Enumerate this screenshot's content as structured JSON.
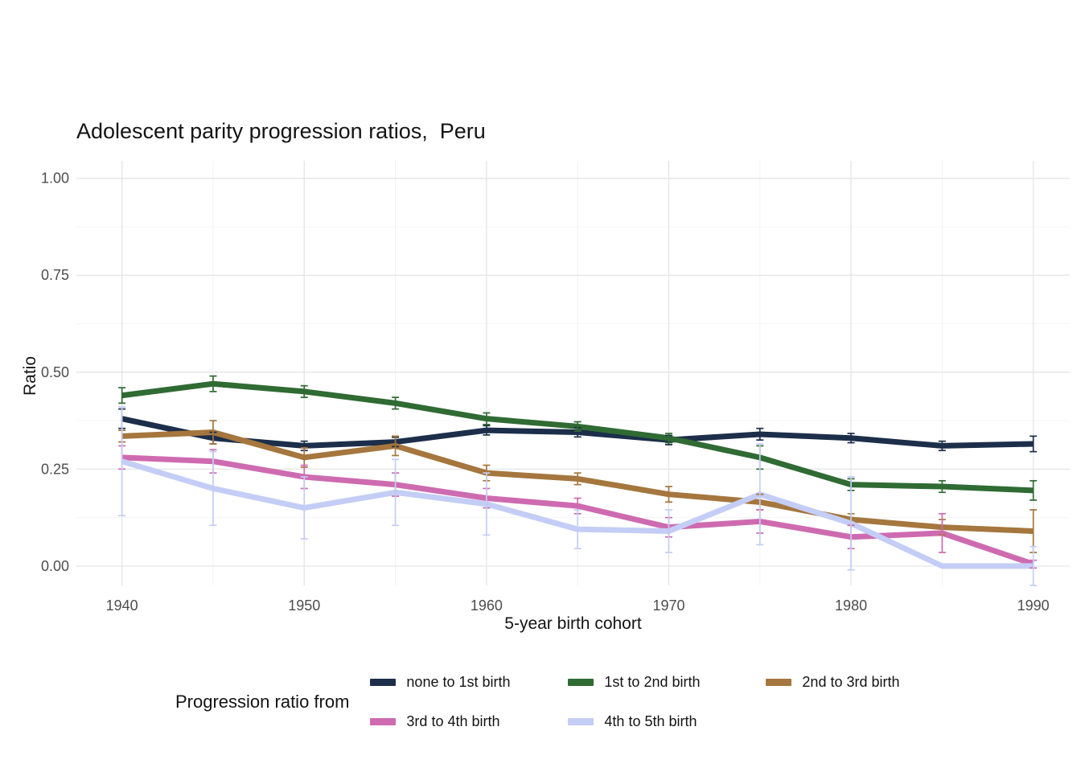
{
  "chart_data": {
    "type": "line",
    "title": "Adolescent parity progression ratios,  Peru",
    "xlabel": "5-year birth cohort",
    "ylabel": "Ratio",
    "legend_title": "Progression ratio from",
    "legend_position": "bottom",
    "grid": true,
    "x": [
      1940,
      1945,
      1950,
      1955,
      1960,
      1965,
      1970,
      1975,
      1980,
      1985,
      1990
    ],
    "x_ticks": [
      1940,
      1950,
      1960,
      1970,
      1980,
      1990
    ],
    "x_tick_labels": [
      "1940",
      "1950",
      "1960",
      "1970",
      "1980",
      "1990"
    ],
    "y_ticks": [
      0.0,
      0.25,
      0.5,
      0.75,
      1.0
    ],
    "y_tick_labels": [
      "0.00",
      "0.25",
      "0.50",
      "0.75",
      "1.00"
    ],
    "xlim": [
      1937.5,
      1992.0
    ],
    "ylim": [
      -0.05,
      1.045
    ],
    "series": [
      {
        "name": "none to 1st birth",
        "color": "#1c2e4a",
        "values": [
          0.38,
          0.33,
          0.31,
          0.32,
          0.35,
          0.345,
          0.325,
          0.34,
          0.33,
          0.31,
          0.315
        ],
        "errors": [
          0.025,
          0.015,
          0.012,
          0.012,
          0.012,
          0.012,
          0.012,
          0.015,
          0.012,
          0.012,
          0.02
        ]
      },
      {
        "name": "1st to 2nd birth",
        "color": "#2f6b33",
        "values": [
          0.44,
          0.47,
          0.45,
          0.42,
          0.38,
          0.36,
          0.33,
          0.28,
          0.21,
          0.205,
          0.195
        ],
        "errors": [
          0.02,
          0.02,
          0.015,
          0.015,
          0.015,
          0.012,
          0.012,
          0.03,
          0.015,
          0.015,
          0.025
        ]
      },
      {
        "name": "2nd to 3rd birth",
        "color": "#a5763d",
        "values": [
          0.335,
          0.345,
          0.28,
          0.31,
          0.24,
          0.225,
          0.185,
          0.165,
          0.12,
          0.1,
          0.09
        ],
        "errors": [
          0.015,
          0.03,
          0.025,
          0.025,
          0.02,
          0.015,
          0.02,
          0.02,
          0.015,
          0.02,
          0.055
        ]
      },
      {
        "name": "3rd to 4th birth",
        "color": "#ce6bb0",
        "values": [
          0.28,
          0.27,
          0.23,
          0.21,
          0.175,
          0.155,
          0.1,
          0.115,
          0.075,
          0.085,
          0.005
        ],
        "errors": [
          0.03,
          0.03,
          0.03,
          0.03,
          0.025,
          0.02,
          0.025,
          0.03,
          0.03,
          0.05,
          0.01
        ]
      },
      {
        "name": "4th to 5th birth",
        "color": "#c4cdf5",
        "values": [
          0.27,
          0.2,
          0.15,
          0.19,
          0.16,
          0.095,
          0.09,
          0.185,
          0.11,
          0.0,
          0.0
        ],
        "errors": [
          0.14,
          0.095,
          0.08,
          0.085,
          0.08,
          0.05,
          0.055,
          0.13,
          0.12,
          0.0,
          0.05
        ]
      }
    ]
  }
}
